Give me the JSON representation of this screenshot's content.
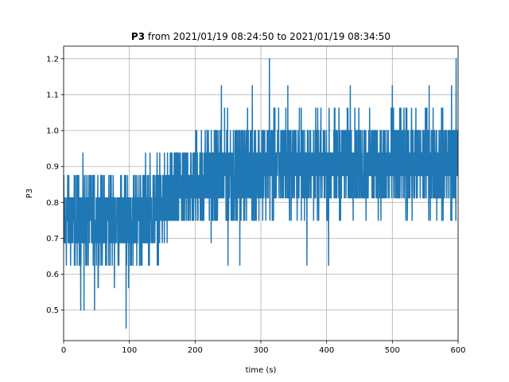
{
  "chart_data": {
    "type": "line",
    "title": {
      "bold": "P3",
      "rest": " from 2021/01/19 08:24:50 to 2021/01/19 08:34:50"
    },
    "xlabel": "time (s)",
    "ylabel": "P3",
    "xlim": [
      0,
      600
    ],
    "ylim": [
      0.415,
      1.235
    ],
    "xticks": [
      0,
      100,
      200,
      300,
      400,
      500,
      600
    ],
    "yticks": [
      0.5,
      0.6,
      0.7,
      0.8,
      0.9,
      1.0,
      1.1,
      1.2
    ],
    "ytick_labels": [
      "0.5",
      "0.6",
      "0.7",
      "0.8",
      "0.9",
      "1.0",
      "1.1",
      "1.2"
    ],
    "grid": true,
    "series": [
      {
        "color": "#1f77b4",
        "sample_interval_s": 0.2,
        "value_step": 0.0625,
        "trend_points": [
          [
            0,
            0.75
          ],
          [
            100,
            0.75
          ],
          [
            150,
            0.8
          ],
          [
            200,
            0.86
          ],
          [
            300,
            0.9
          ],
          [
            600,
            0.91
          ]
        ],
        "envelope": {
          "segments": [
            {
              "x": [
                0,
                190
              ],
              "min": 0.5625,
              "max": 0.9375
            },
            {
              "x": [
                190,
                600
              ],
              "min": 0.6875,
              "max": 1.0625
            }
          ]
        },
        "extremes": [
          {
            "x": 95,
            "y": 0.45
          },
          {
            "x": 26,
            "y": 0.5
          },
          {
            "x": 31,
            "y": 0.5
          },
          {
            "x": 47,
            "y": 0.5
          },
          {
            "x": 313,
            "y": 1.2
          },
          {
            "x": 597,
            "y": 1.2
          },
          {
            "x": 240,
            "y": 1.125
          },
          {
            "x": 287,
            "y": 1.125
          },
          {
            "x": 341,
            "y": 1.125
          },
          {
            "x": 436,
            "y": 1.125
          },
          {
            "x": 500,
            "y": 1.125
          },
          {
            "x": 556,
            "y": 1.125
          },
          {
            "x": 590,
            "y": 1.125
          },
          {
            "x": 250,
            "y": 0.625
          },
          {
            "x": 268,
            "y": 0.625
          },
          {
            "x": 370,
            "y": 0.625
          },
          {
            "x": 403,
            "y": 0.625
          }
        ]
      }
    ]
  }
}
